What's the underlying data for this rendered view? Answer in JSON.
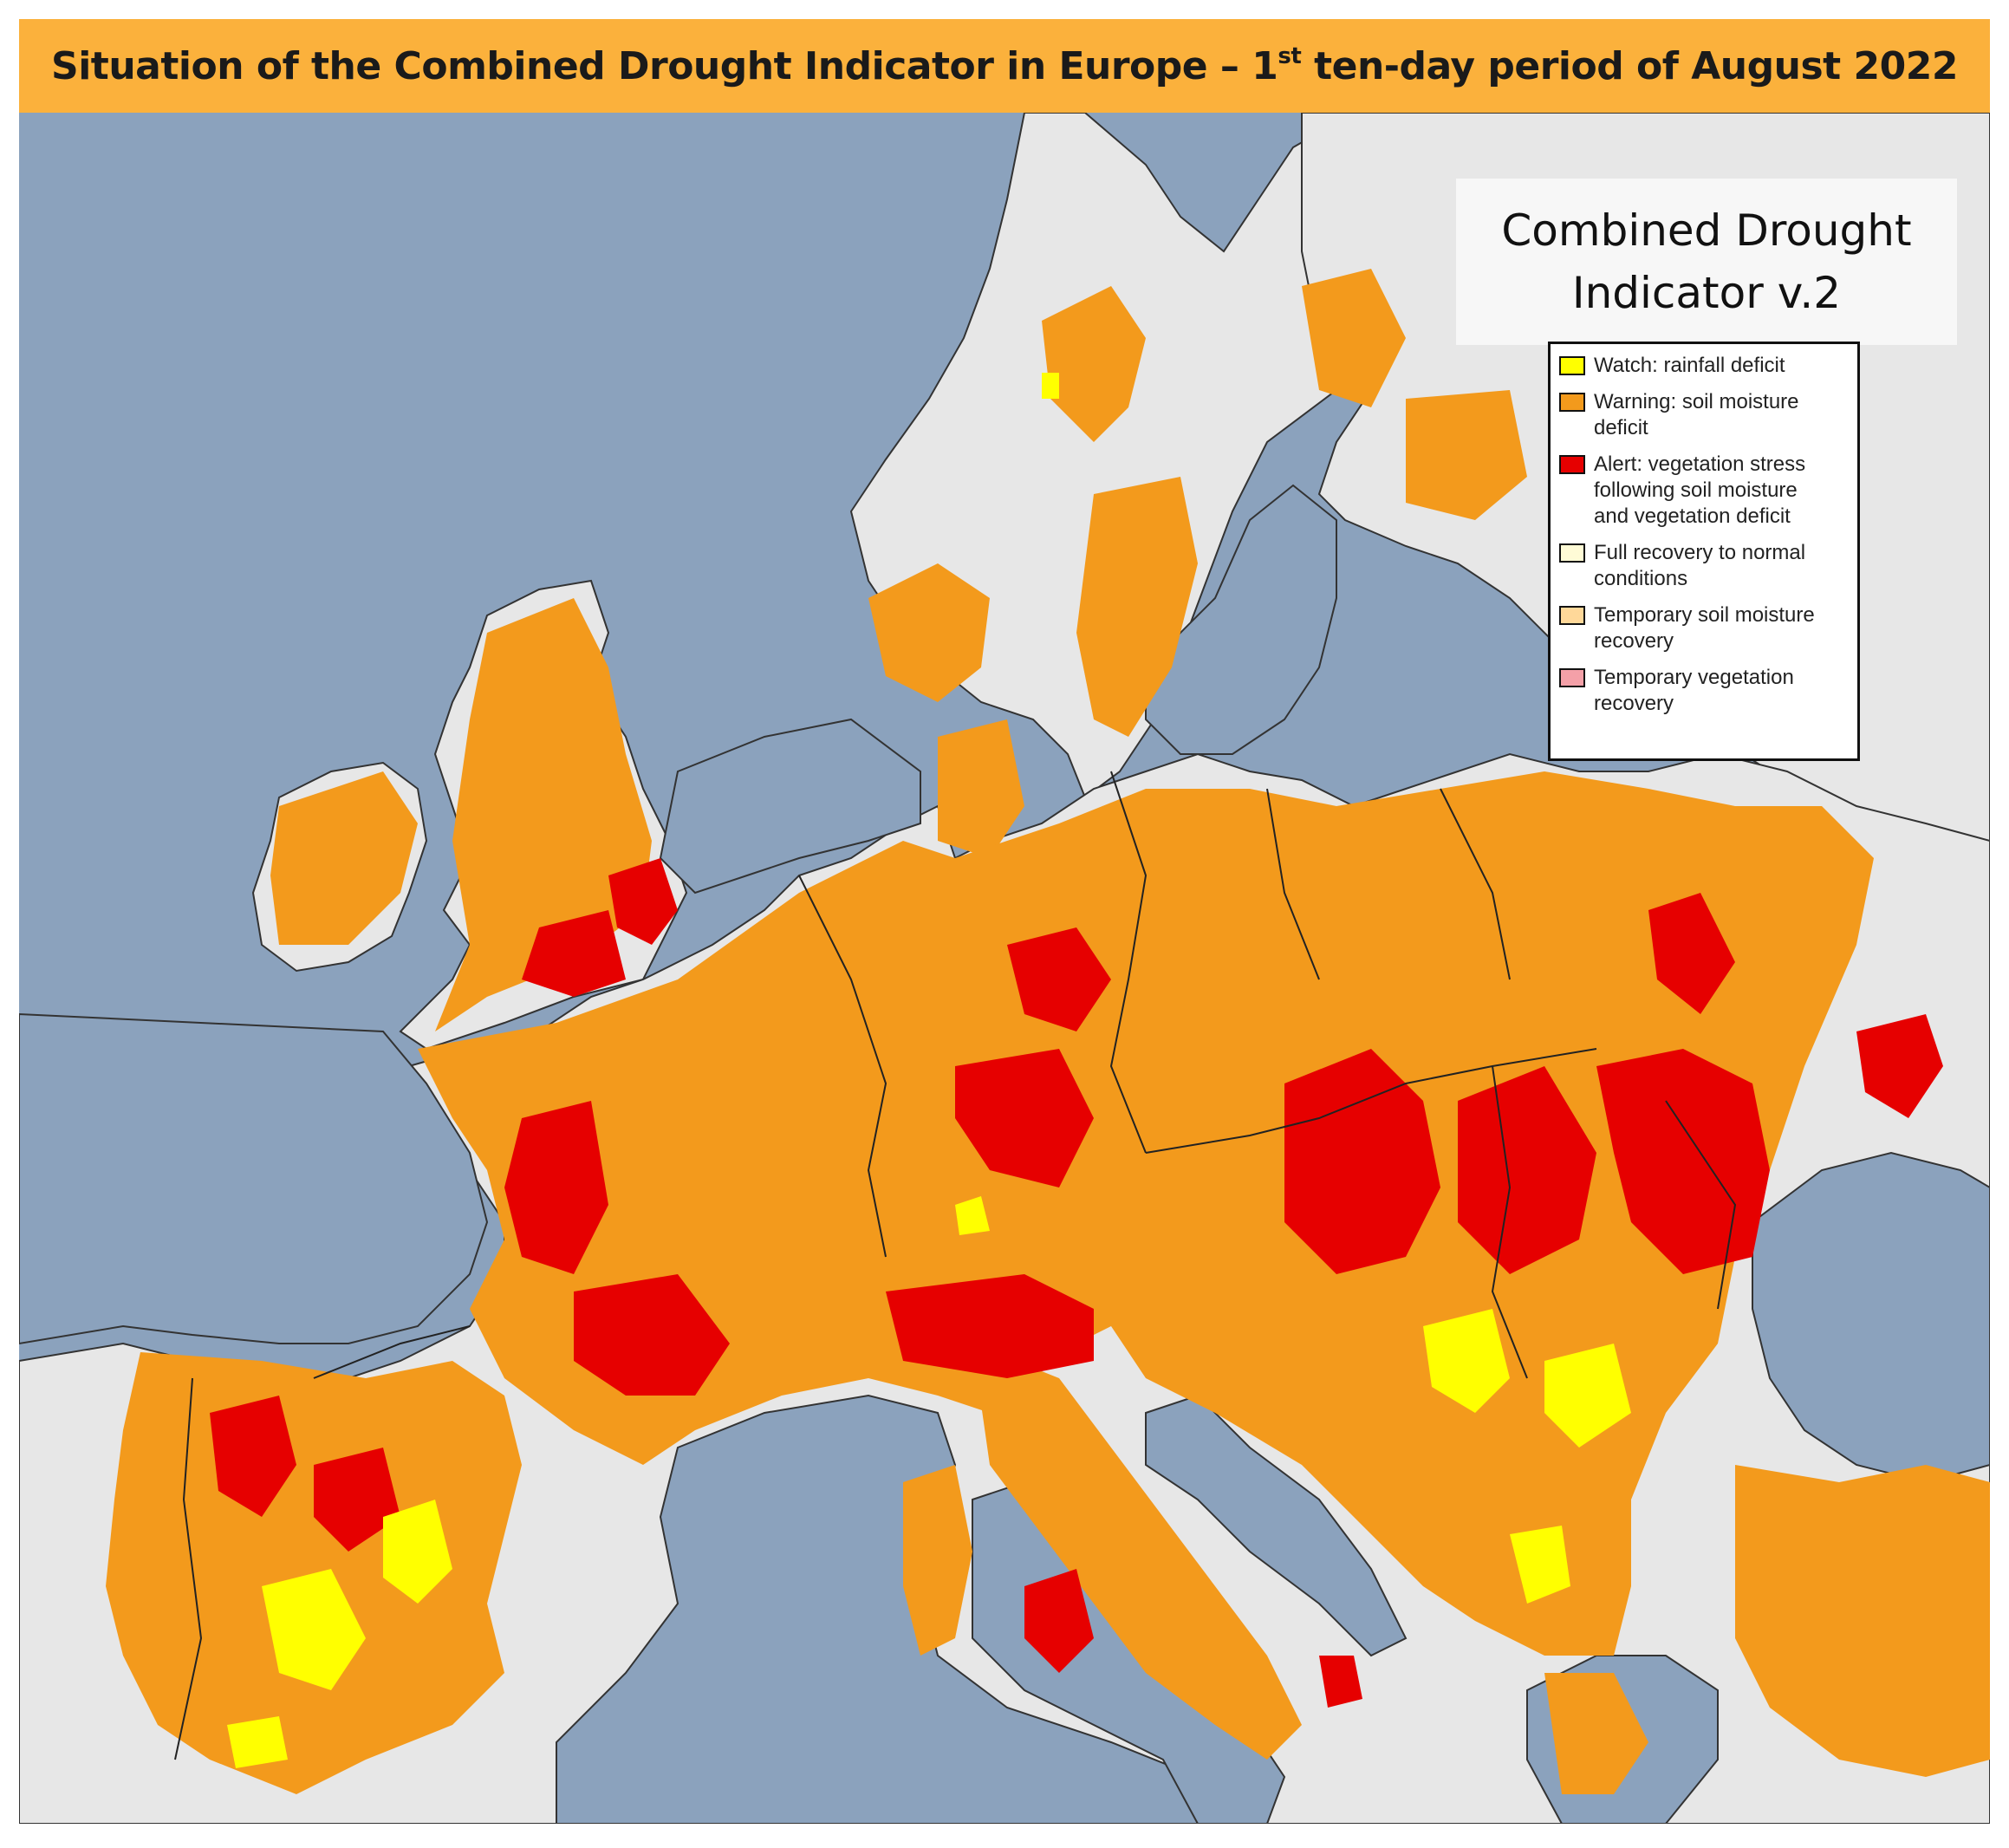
{
  "title": {
    "before_sup": "Situation of the Combined Drought Indicator in Europe – 1",
    "sup": "st",
    "after_sup": " ten-day period of August 2022"
  },
  "map_heading": {
    "line1": "Combined Drought",
    "line2": "Indicator v.2"
  },
  "legend": [
    {
      "label": "Watch: rainfall deficit",
      "color": "#ffff00"
    },
    {
      "label": "Warning: soil moisture\ndeficit",
      "color": "#f39a1c"
    },
    {
      "label": "Alert: vegetation stress\nfollowing soil moisture\nand vegetation deficit",
      "color": "#e60000"
    },
    {
      "label": "Full recovery to normal\nconditions",
      "color": "#fffbd6"
    },
    {
      "label": "Temporary soil moisture\nrecovery",
      "color": "#ffd899"
    },
    {
      "label": "Temporary vegetation\nrecovery",
      "color": "#f4a0a8"
    }
  ],
  "colors": {
    "sea": "#8ba2bd",
    "land_no_drought": "#e7e7e7",
    "frame": "#fbb13c"
  }
}
